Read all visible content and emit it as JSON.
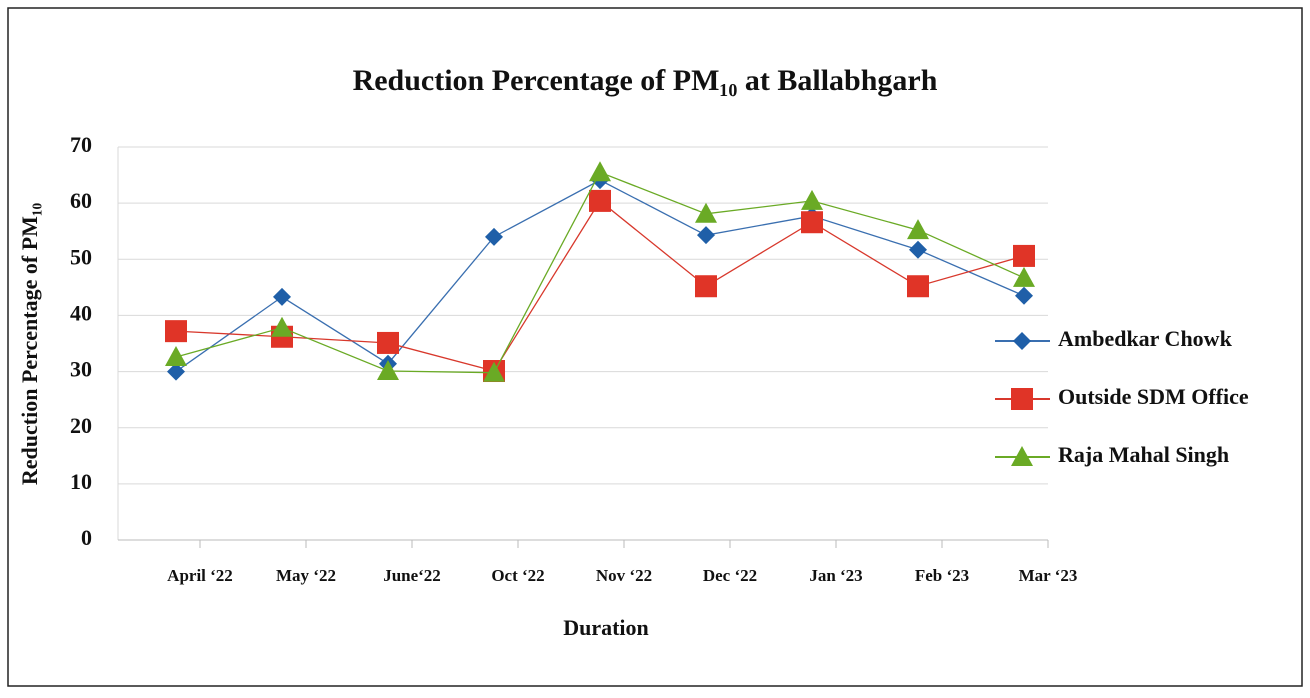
{
  "chart_data": {
    "type": "line",
    "title": "Reduction Percentage of PM₁₀ at Ballabhgarh",
    "x_label": "Duration",
    "y_label": "Reduction Percentage of PM₁₀",
    "categories": [
      "April ‘22",
      "May ‘22",
      "June‘22",
      "Oct ‘22",
      "Nov ‘22",
      "Dec ‘22",
      "Jan ‘23",
      "Feb ‘23",
      "Mar ‘23"
    ],
    "series": [
      {
        "name": "Ambedkar Chowk",
        "color": "#1f5fa8",
        "line_color": "#3a6fb0",
        "marker": "diamond",
        "values": [
          30,
          43.3,
          31.4,
          54,
          64.1,
          54.3,
          57.7,
          51.7,
          43.5
        ]
      },
      {
        "name": "Outside SDM Office",
        "color": "#e03427",
        "line_color": "#d8382c",
        "marker": "square",
        "values": [
          37.2,
          36.2,
          35.1,
          30.1,
          60.4,
          45.2,
          56.6,
          45.2,
          50.6
        ]
      },
      {
        "name": "Raja Mahal Singh",
        "color": "#6aaa25",
        "line_color": "#6aaa25",
        "marker": "triangle",
        "values": [
          32.6,
          37.8,
          30.1,
          29.8,
          65.5,
          58.1,
          60.4,
          55.2,
          46.7
        ]
      }
    ],
    "ylim": [
      0,
      70
    ],
    "yticks": [
      0,
      10,
      20,
      30,
      40,
      50,
      60,
      70
    ],
    "grid": true,
    "legend": "right"
  }
}
